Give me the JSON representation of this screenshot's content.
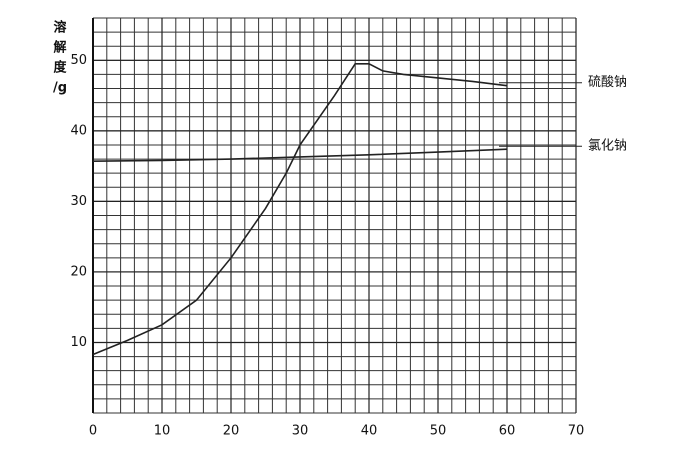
{
  "chart_data": {
    "type": "line",
    "ylabel": [
      "溶",
      "解",
      "度",
      "/g"
    ],
    "xlim": [
      0,
      70
    ],
    "xticks": [
      0,
      10,
      20,
      30,
      40,
      50,
      60,
      70
    ],
    "ylim": [
      0,
      56
    ],
    "yticks": [
      10,
      20,
      30,
      40,
      50
    ],
    "grid": true,
    "series": [
      {
        "name": "硫酸钠",
        "color": "#222222",
        "x": [
          0,
          5,
          10,
          15,
          20,
          25,
          28,
          30,
          35,
          38,
          40,
          42,
          45,
          50,
          55,
          60
        ],
        "values": [
          8.3,
          10.3,
          12.5,
          16,
          22,
          29,
          34,
          38,
          45,
          49.5,
          49.5,
          48.5,
          48,
          47.5,
          47,
          46.4
        ]
      },
      {
        "name": "氯化钠",
        "color": "#222222",
        "x": [
          0,
          10,
          20,
          30,
          40,
          50,
          60
        ],
        "values": [
          35.7,
          35.8,
          36,
          36.3,
          36.6,
          37,
          37.4
        ]
      }
    ]
  }
}
